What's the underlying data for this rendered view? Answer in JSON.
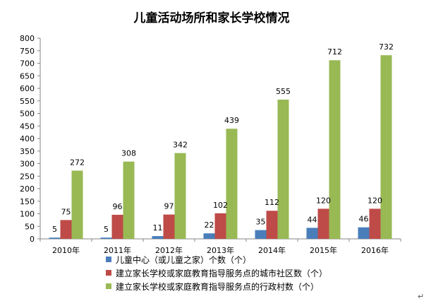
{
  "chart_data": {
    "type": "bar",
    "title": "儿童活动场所和家长学校情况",
    "categories": [
      "2010年",
      "2011年",
      "2012年",
      "2013年",
      "2014年",
      "2015年",
      "2016年"
    ],
    "ylim": [
      0,
      800
    ],
    "yticks": [
      0,
      50,
      100,
      150,
      200,
      250,
      300,
      350,
      400,
      450,
      500,
      550,
      600,
      650,
      700,
      750,
      800
    ],
    "grid": false,
    "legend_position": "bottom",
    "series": [
      {
        "name": "儿童中心（或儿童之家）个数（个）",
        "color": "#4a7ebb",
        "values": [
          5,
          5,
          11,
          22,
          35,
          44,
          46
        ]
      },
      {
        "name": "建立家长学校或家庭教育指导服务点的城市社区数（个）",
        "color": "#be4b48",
        "values": [
          75,
          96,
          97,
          102,
          112,
          120,
          120
        ]
      },
      {
        "name": "建立家长学校或家庭教育指导服务点的行政村数（个）",
        "color": "#98b954",
        "values": [
          272,
          308,
          342,
          439,
          555,
          712,
          732
        ]
      }
    ],
    "annotation": "↵"
  }
}
